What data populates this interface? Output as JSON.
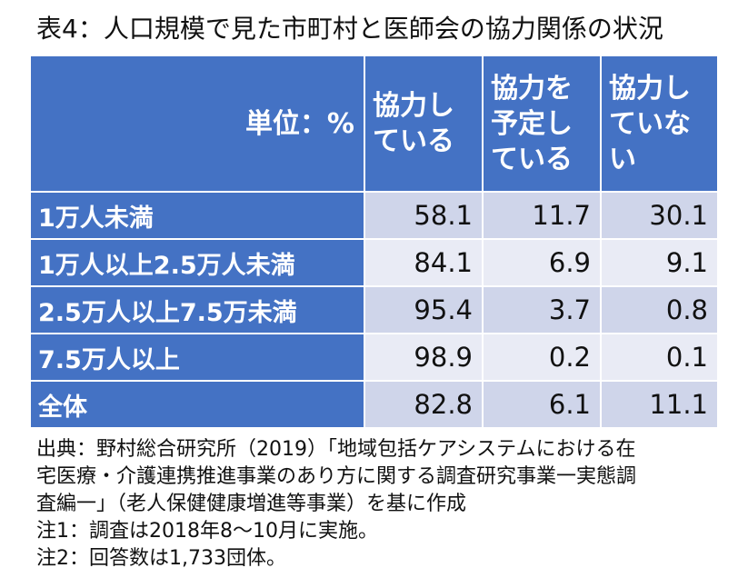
{
  "title": "表4：人口規模で見た市町村と医師会の協力関係の状況",
  "table": {
    "unit_header": "単位：%",
    "headers": [
      [
        "協力し",
        "ている"
      ],
      [
        "協力を",
        "予定し",
        "ている"
      ],
      [
        "協力し",
        "ていな",
        "い"
      ]
    ],
    "rows": [
      {
        "label": "1万人未満",
        "values": [
          "58.1",
          "11.7",
          "30.1"
        ]
      },
      {
        "label": "1万人以上2.5万人未満",
        "values": [
          "84.1",
          "6.9",
          "9.1"
        ]
      },
      {
        "label": "2.5万人以上7.5万未満",
        "values": [
          "95.4",
          "3.7",
          "0.8"
        ]
      },
      {
        "label": "7.5万人以上",
        "values": [
          "98.9",
          "0.2",
          "0.1"
        ]
      },
      {
        "label": "全体",
        "values": [
          "82.8",
          "6.1",
          "11.1"
        ]
      }
    ]
  },
  "notes": [
    "出典：野村総合研究所（2019）「地域包括ケアシステムにおける在",
    "宅医療・介護連携推進事業のあり方に関する調査研究事業一実態調",
    "査編一」（老人保健健康増進等事業）を基に作成",
    "注1：調査は2018年8～10月に実施。",
    "注2：回答数は1,733団体。"
  ],
  "colors": {
    "header_blue": "#4472c4",
    "band_dark": "#cfd5ea",
    "band_light": "#e9ebf5"
  }
}
